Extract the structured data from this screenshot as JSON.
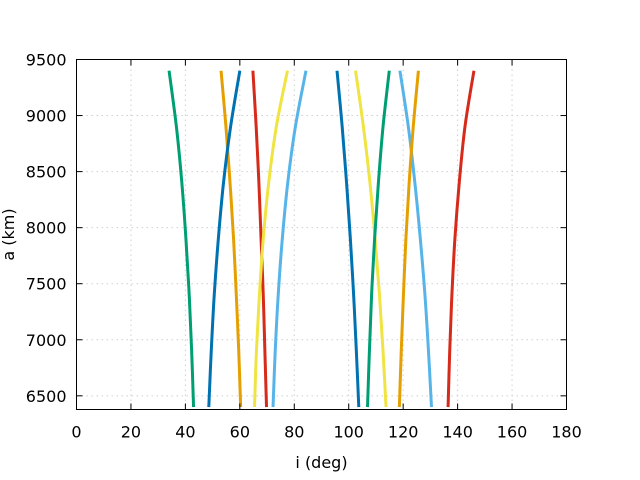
{
  "chart_data": {
    "type": "line",
    "xlabel": "i (deg)",
    "ylabel": "a (km)",
    "xlim": [
      0,
      180
    ],
    "ylim": [
      6378,
      9500
    ],
    "x_ticks": [
      "0",
      "20",
      "40",
      "60",
      "80",
      "100",
      "120",
      "140",
      "160",
      "180"
    ],
    "y_ticks": [
      "6500",
      "7000",
      "7500",
      "8000",
      "8500",
      "9000",
      "9500"
    ],
    "grid": true,
    "legend": "none",
    "series": [
      {
        "color": "#009e73",
        "x": [
          34.0,
          36.7,
          38.7,
          40.2,
          41.4,
          42.3,
          43.0
        ],
        "y": [
          9400,
          8900,
          8400,
          7900,
          7400,
          6900,
          6400
        ]
      },
      {
        "color": "#e69f00",
        "x": [
          53.1,
          54.9,
          56.4,
          57.7,
          58.7,
          59.6,
          60.3
        ],
        "y": [
          9400,
          8900,
          8400,
          7900,
          7400,
          6900,
          6400
        ]
      },
      {
        "color": "#0072b2",
        "x": [
          60.0,
          56.6,
          54.0,
          52.1,
          50.6,
          49.5,
          48.6
        ],
        "y": [
          9400,
          8900,
          8400,
          7900,
          7400,
          6900,
          6400
        ]
      },
      {
        "color": "#d62a1a",
        "x": [
          64.8,
          66.0,
          67.0,
          67.8,
          68.6,
          69.2,
          69.8
        ],
        "y": [
          9400,
          8900,
          8400,
          7900,
          7400,
          6900,
          6400
        ]
      },
      {
        "color": "#f0e442",
        "x": [
          77.5,
          73.4,
          70.6,
          68.6,
          67.2,
          66.1,
          65.4
        ],
        "y": [
          9400,
          8900,
          8400,
          7900,
          7400,
          6900,
          6400
        ]
      },
      {
        "color": "#56b4e9",
        "x": [
          84.3,
          80.4,
          77.6,
          75.6,
          74.1,
          73.0,
          72.2
        ],
        "y": [
          9400,
          8900,
          8400,
          7900,
          7400,
          6900,
          6400
        ]
      },
      {
        "color": "#0072b2",
        "x": [
          95.7,
          97.6,
          99.2,
          100.6,
          101.8,
          102.8,
          103.7
        ],
        "y": [
          9400,
          8900,
          8400,
          7900,
          7400,
          6900,
          6400
        ]
      },
      {
        "color": "#f0e442",
        "x": [
          102.5,
          105.4,
          107.8,
          109.7,
          111.3,
          112.6,
          113.7
        ],
        "y": [
          9400,
          8900,
          8400,
          7900,
          7400,
          6900,
          6400
        ]
      },
      {
        "color": "#009e73",
        "x": [
          114.9,
          112.6,
          110.9,
          109.5,
          108.4,
          107.6,
          106.9
        ],
        "y": [
          9400,
          8900,
          8400,
          7900,
          7400,
          6900,
          6400
        ]
      },
      {
        "color": "#56b4e9",
        "x": [
          118.8,
          121.9,
          124.3,
          126.3,
          128.0,
          129.3,
          130.4
        ],
        "y": [
          9400,
          8900,
          8400,
          7900,
          7400,
          6900,
          6400
        ]
      },
      {
        "color": "#e69f00",
        "x": [
          125.6,
          123.7,
          122.2,
          121.0,
          120.1,
          119.3,
          118.6
        ],
        "y": [
          9400,
          8900,
          8400,
          7900,
          7400,
          6900,
          6400
        ]
      },
      {
        "color": "#d62a1a",
        "x": [
          146.0,
          142.7,
          140.6,
          139.0,
          137.9,
          137.1,
          136.5
        ],
        "y": [
          9400,
          8900,
          8400,
          7900,
          7400,
          6900,
          6400
        ]
      }
    ]
  }
}
